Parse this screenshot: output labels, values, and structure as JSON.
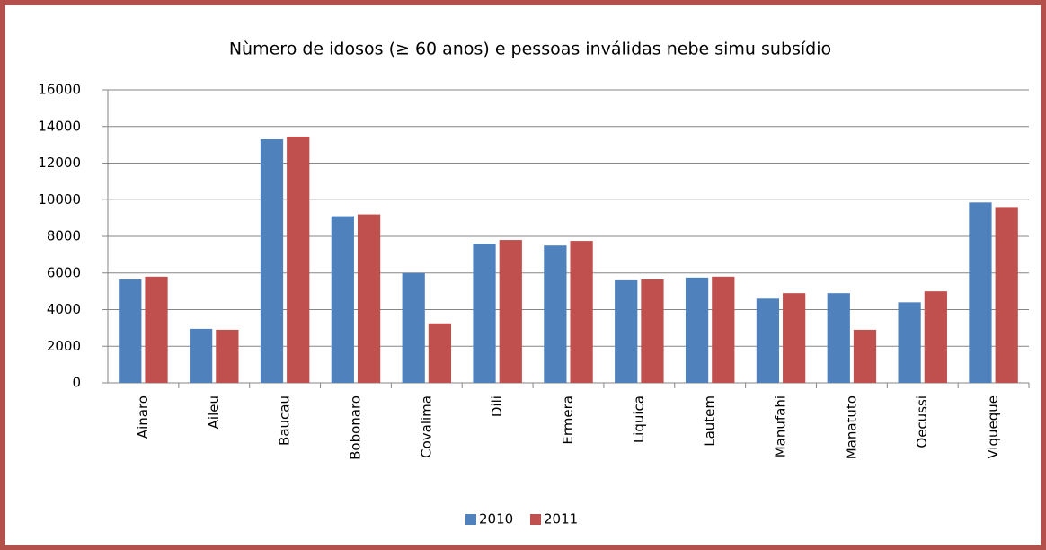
{
  "chart_data": {
    "type": "bar",
    "title": "Nùmero de idosos (≥ 60 anos) e pessoas inválidas nebe simu subsídio",
    "categories": [
      "Ainaro",
      "Aileu",
      "Baucau",
      "Bobonaro",
      "Covalima",
      "Dili",
      "Ermera",
      "Liquica",
      "Lautem",
      "Manufahi",
      "Manatuto",
      "Oecussi",
      "Viqueque"
    ],
    "series": [
      {
        "name": "2010",
        "color": "#4f81bd",
        "values": [
          5650,
          2950,
          13300,
          9100,
          6000,
          7600,
          7500,
          5600,
          5750,
          4600,
          4900,
          4400,
          9850
        ]
      },
      {
        "name": "2011",
        "color": "#c0504d",
        "values": [
          5800,
          2900,
          13450,
          9200,
          3250,
          7800,
          7750,
          5650,
          5800,
          4900,
          2900,
          5000,
          9600
        ]
      }
    ],
    "ylim": [
      0,
      16000
    ],
    "yticks": [
      0,
      2000,
      4000,
      6000,
      8000,
      10000,
      12000,
      14000,
      16000
    ],
    "grid": true,
    "legend": "bottom"
  }
}
